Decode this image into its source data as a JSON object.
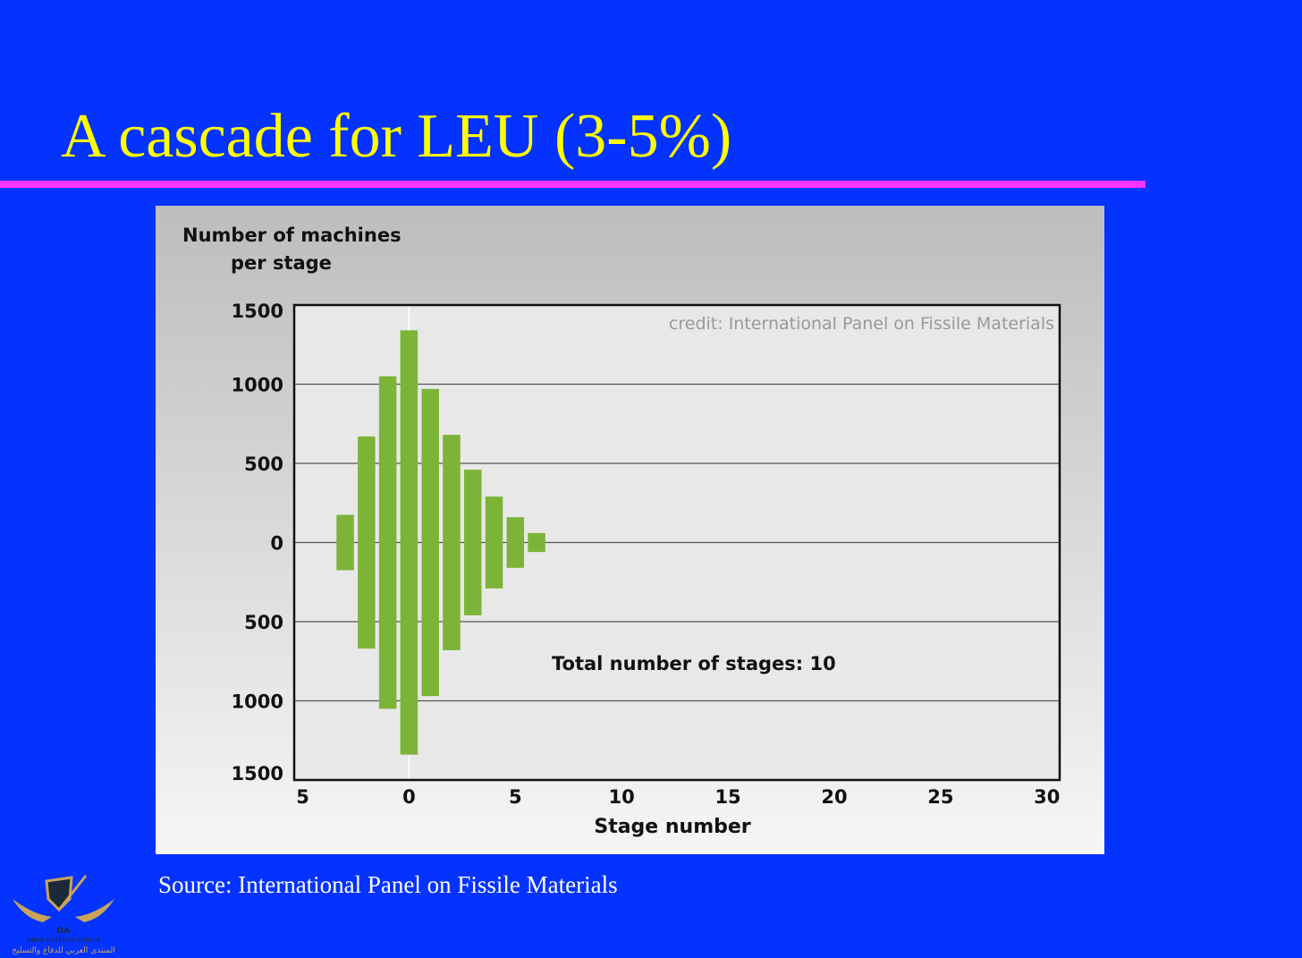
{
  "slide": {
    "title": "A cascade for LEU (3-5%)",
    "source": "Source: International Panel on Fissile Materials",
    "logo_text": [
      "DA",
      "ARAB DEFENSE FORUM",
      "المنتدى العربي للدفاع والتسليح"
    ]
  },
  "chart_data": {
    "type": "bar",
    "ylabel_line1": "Number of machines",
    "ylabel_line2": "per stage",
    "xlabel": "Stage number",
    "credit": "credit: International Panel on Fissile Materials",
    "annotation": "Total number of stages: 10",
    "x": [
      -3,
      -2,
      -1,
      0,
      1,
      2,
      3,
      4,
      5,
      6
    ],
    "values": [
      175,
      670,
      1050,
      1340,
      970,
      680,
      460,
      290,
      160,
      60
    ],
    "symmetric_about_zero": true,
    "xlim": [
      -5.4,
      30.6
    ],
    "ylim": [
      -1500,
      1500
    ],
    "xticks": [
      -5,
      0,
      5,
      10,
      15,
      20,
      25,
      30
    ],
    "xtick_labels": [
      "5",
      "0",
      "5",
      "10",
      "15",
      "20",
      "25",
      "30"
    ],
    "yticks": [
      1500,
      1000,
      500,
      0,
      -500,
      -1000,
      -1500
    ],
    "ytick_labels": [
      "1500",
      "1000",
      "500",
      "0",
      "500",
      "1000",
      "1500"
    ],
    "grid": "horizontal",
    "colors": {
      "bar": "#7cb437",
      "plot_bg": "#e8e8e8"
    }
  }
}
